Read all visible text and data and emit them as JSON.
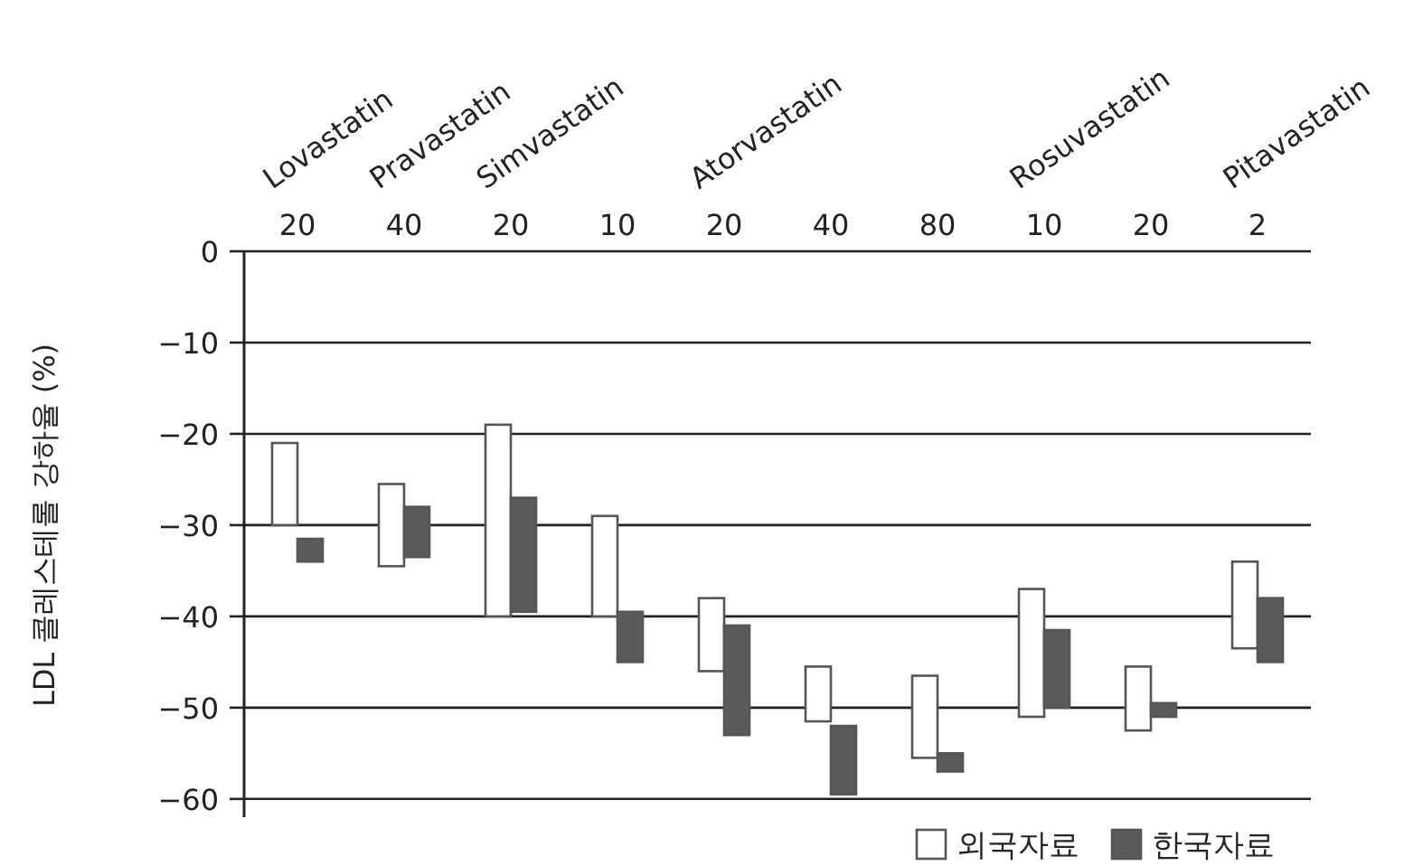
{
  "chart_data": {
    "type": "bar",
    "ylabel": "LDL 콜레스테롤 강하율 (%)",
    "categories": [
      "20",
      "40",
      "20",
      "10",
      "20",
      "40",
      "80",
      "10",
      "20",
      "2"
    ],
    "annotations": [
      "Lovastatin",
      "Pravastatin",
      "Simvastatin",
      "Atorvastatin",
      "Rosuvastatin",
      "Pitavastatin"
    ],
    "series": [
      {
        "name": "외국자료",
        "color": "#ffffff",
        "base": [
          -21,
          -25.5,
          -19,
          -29,
          -38,
          -45.5,
          -46.5,
          -37,
          -45.5,
          -34
        ],
        "values": [
          -9,
          -9,
          -21,
          -11,
          -8,
          -6,
          -9,
          -14,
          -7,
          -9.5
        ]
      },
      {
        "name": "한국자료",
        "color": "#5a5a5a",
        "base": [
          -31.5,
          -28,
          -27,
          -39.5,
          -41,
          -52,
          -55,
          -41.5,
          -49.5,
          -38
        ],
        "values": [
          -2.5,
          -5.5,
          -12.5,
          -5.5,
          -12,
          -7.5,
          -2,
          -8.5,
          -1.5,
          -7
        ]
      }
    ],
    "ylim": [
      -62,
      0
    ],
    "yticks": [
      0,
      -10,
      -20,
      -30,
      -40,
      -50,
      -60
    ],
    "grid": "y",
    "legend": "bottom right"
  }
}
